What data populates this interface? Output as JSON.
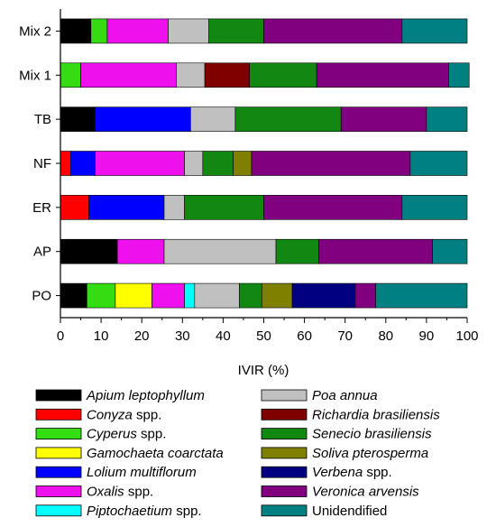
{
  "chart_data": {
    "type": "bar",
    "orientation": "horizontal",
    "stacked": true,
    "xlabel": "IVIR (%)",
    "xlim": [
      0,
      100
    ],
    "xticks": [
      0,
      10,
      20,
      30,
      40,
      50,
      60,
      70,
      80,
      90,
      100
    ],
    "grid": false,
    "legend_position": "bottom",
    "categories": [
      "PO",
      "AP",
      "ER",
      "NF",
      "TB",
      "Mix 1",
      "Mix 2"
    ],
    "series": [
      {
        "name": "Apium leptophyllum",
        "name_italic": "Apium leptophyllum",
        "name_suffix": "",
        "color": "#000000",
        "values": [
          6.5,
          14,
          0,
          0,
          8.5,
          0,
          7.5
        ]
      },
      {
        "name": "Conyza spp.",
        "name_italic": "Conyza",
        "name_suffix": " spp.",
        "color": "#ff0000",
        "values": [
          0,
          0,
          7,
          2.5,
          0,
          0,
          0
        ]
      },
      {
        "name": "Cyperus spp.",
        "name_italic": "Cyperus",
        "name_suffix": " spp.",
        "color": "#33dd11",
        "values": [
          7,
          0,
          0,
          0,
          0,
          5,
          4
        ]
      },
      {
        "name": "Gamochaeta coarctata",
        "name_italic": "Gamochaeta coarctata",
        "name_suffix": "",
        "color": "#ffff00",
        "values": [
          9,
          0,
          0,
          0,
          0,
          0,
          0
        ]
      },
      {
        "name": "Lolium multiflorum",
        "name_italic": "Lolium multiflorum",
        "name_suffix": "",
        "color": "#0000ff",
        "values": [
          0,
          0,
          18.5,
          6,
          23.5,
          0,
          0
        ]
      },
      {
        "name": "Oxalis spp.",
        "name_italic": "Oxalis",
        "name_suffix": " spp.",
        "color": "#ee11ee",
        "values": [
          8,
          11.5,
          0,
          22,
          0,
          23.5,
          15
        ]
      },
      {
        "name": "Piptochaetium spp.",
        "name_italic": "Piptochaetium",
        "name_suffix": " spp.",
        "color": "#00ffff",
        "values": [
          2.5,
          0,
          0,
          0,
          0,
          0,
          0
        ]
      },
      {
        "name": "Poa annua",
        "name_italic": "Poa annua",
        "name_suffix": "",
        "color": "#c0c0c0",
        "values": [
          11,
          27.5,
          5,
          4.5,
          11,
          7,
          10
        ]
      },
      {
        "name": "Richardia brasiliensis",
        "name_italic": "Richardia brasiliensis",
        "name_suffix": "",
        "color": "#800000",
        "values": [
          0,
          0,
          0,
          0,
          0,
          11,
          0
        ]
      },
      {
        "name": "Senecio brasiliensis",
        "name_italic": "Senecio brasiliensis",
        "name_suffix": "",
        "color": "#118811",
        "values": [
          5.5,
          10.5,
          19.5,
          7.5,
          26,
          16.5,
          13.5
        ]
      },
      {
        "name": "Soliva pterosperma",
        "name_italic": "Soliva pterosperma",
        "name_suffix": "",
        "color": "#808000",
        "values": [
          7.5,
          0,
          0,
          4.5,
          0,
          0,
          0
        ]
      },
      {
        "name": "Verbena spp.",
        "name_italic": "Verbena",
        "name_suffix": " spp.",
        "color": "#000080",
        "values": [
          15.5,
          0,
          0,
          0,
          0,
          0,
          0
        ]
      },
      {
        "name": "Veronica arvensis",
        "name_italic": "Veronica arvensis",
        "name_suffix": "",
        "color": "#800080",
        "values": [
          5,
          28,
          34,
          39,
          21,
          32.5,
          34
        ]
      },
      {
        "name": "Unidendified",
        "name_italic": "",
        "name_suffix": "Unidendified",
        "color": "#008080",
        "values": [
          22.5,
          8.5,
          16,
          14,
          10,
          5,
          16
        ]
      }
    ]
  }
}
